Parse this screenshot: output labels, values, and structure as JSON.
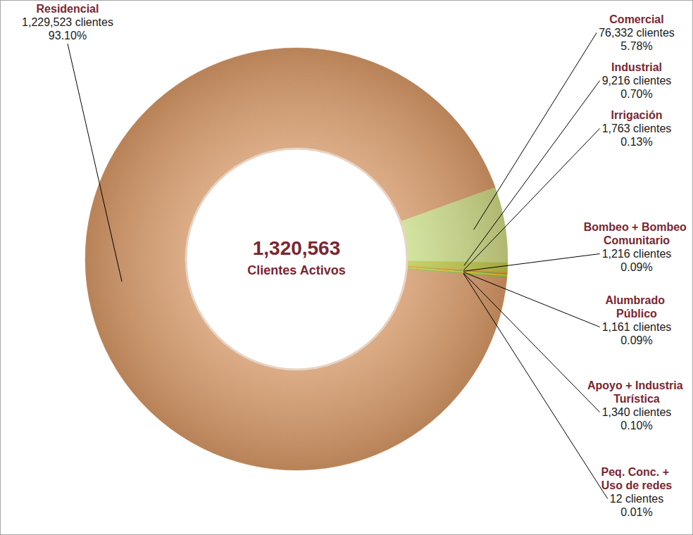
{
  "chart_data": {
    "type": "donut",
    "categories": [
      "Residencial",
      "Comercial",
      "Industrial",
      "Irrigación",
      "Bombeo + Bombeo\nComunitario",
      "Alumbrado\nPúblico",
      "Apoyo + Industria\nTurística",
      "Peq. Conc. +\nUso de redes"
    ],
    "values": [
      1229523,
      76332,
      9216,
      1763,
      1216,
      1161,
      1340,
      12
    ],
    "value_labels": [
      "1,229,523 clientes",
      "76,332 clientes",
      "9,216 clientes",
      "1,763 clientes",
      "1,216 clientes",
      "1,161 clientes",
      "1,340 clientes",
      "12 clientes"
    ],
    "percentages": [
      93.1,
      5.78,
      0.7,
      0.13,
      0.09,
      0.09,
      0.1,
      0.01
    ],
    "percentage_labels": [
      "93.10%",
      "5.78%",
      "0.70%",
      "0.13%",
      "0.09%",
      "0.09%",
      "0.10%",
      "0.01%"
    ],
    "total": 1320563,
    "total_label": "1,320,563",
    "center_text": "Clientes Activos",
    "colors": [
      "#d39a6c",
      "#c9de8c",
      "#b8c94a",
      "#e5a33a",
      "#6bab4c",
      "#f2d21b",
      "#a8b83a",
      "#8cb85c"
    ],
    "data_labels": true
  }
}
